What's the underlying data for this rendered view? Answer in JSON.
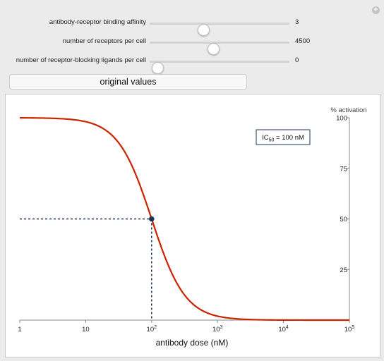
{
  "controls": [
    {
      "label": "antibody-receptor binding affinity",
      "value": "3",
      "position": 0.38
    },
    {
      "label": "number of receptors per cell",
      "value": "4500",
      "position": 0.45
    },
    {
      "label": "number of receptor-blocking ligands per cell",
      "value": "0",
      "position": 0.05
    }
  ],
  "reset_button": "original values",
  "plus_icon": "plus-icon",
  "chart_data": {
    "type": "line",
    "xlabel": "antibody dose (nM)",
    "ylabel": "% activation",
    "x_scale": "log",
    "xlim": [
      1,
      100000
    ],
    "ylim": [
      0,
      100
    ],
    "x_ticks": [
      {
        "value": 1,
        "base": "1",
        "exp": ""
      },
      {
        "value": 10,
        "base": "10",
        "exp": ""
      },
      {
        "value": 100,
        "base": "10",
        "exp": "2"
      },
      {
        "value": 1000,
        "base": "10",
        "exp": "3"
      },
      {
        "value": 10000,
        "base": "10",
        "exp": "4"
      },
      {
        "value": 100000,
        "base": "10",
        "exp": "5"
      }
    ],
    "y_ticks": [
      "25",
      "50",
      "75",
      "100"
    ],
    "y_ticks_values": [
      25,
      50,
      75,
      100
    ],
    "curve": {
      "ic50": 100,
      "hill": 1.7,
      "top": 100,
      "color": "#cc2200"
    },
    "marker": {
      "x": 100,
      "y": 50,
      "color": "#1d3557"
    },
    "annotation": {
      "prefix": "IC",
      "subscript": "50",
      "suffix": " = 100 nM"
    }
  }
}
